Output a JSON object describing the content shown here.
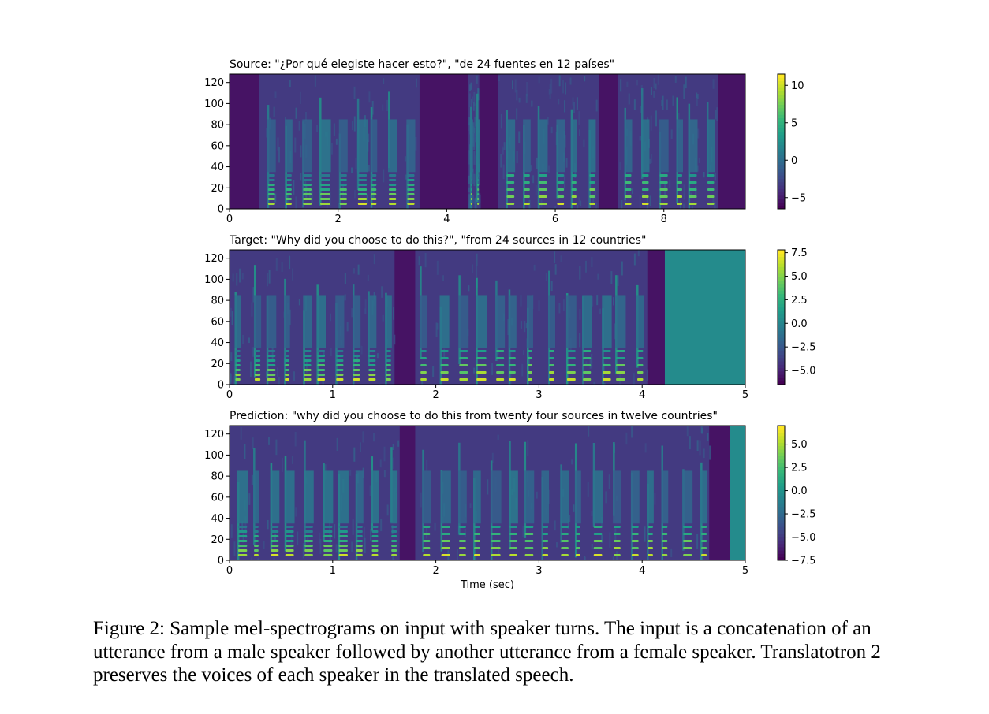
{
  "figure": {
    "xlabel": "Time (sec)",
    "panels": [
      {
        "title": "Source: \"¿Por qué elegiste hacer esto?\", \"de 24 fuentes en 12 países\"",
        "xlim": [
          0,
          9.5
        ],
        "xticks": [
          0,
          2,
          4,
          6,
          8
        ],
        "ylim": [
          0,
          128
        ],
        "yticks": [
          0,
          20,
          40,
          60,
          80,
          100,
          120
        ],
        "colorbar": {
          "range": [
            -6.5,
            11.5
          ],
          "ticks": [
            10,
            5,
            0,
            -5
          ],
          "tick_labels": [
            "10",
            "5",
            "0",
            "−5"
          ]
        },
        "segments": [
          {
            "t0": 0.55,
            "t1": 3.5,
            "speaker": "male"
          },
          {
            "t0": 4.4,
            "t1": 4.6,
            "speaker": "male"
          },
          {
            "t0": 4.95,
            "t1": 6.8,
            "speaker": "female"
          },
          {
            "t0": 7.15,
            "t1": 9.0,
            "speaker": "female"
          }
        ],
        "padding_from": null
      },
      {
        "title": "Target: \"Why did you choose to do this?\", \"from 24 sources in 12 countries\"",
        "xlim": [
          0,
          5
        ],
        "xticks": [
          0,
          1,
          2,
          3,
          4,
          5
        ],
        "ylim": [
          0,
          128
        ],
        "yticks": [
          0,
          20,
          40,
          60,
          80,
          100,
          120
        ],
        "colorbar": {
          "range": [
            -6.5,
            7.8
          ],
          "ticks": [
            7.5,
            5.0,
            2.5,
            0.0,
            -2.5,
            -5.0
          ],
          "tick_labels": [
            "7.5",
            "5.0",
            "2.5",
            "0.0",
            "−2.5",
            "−5.0"
          ]
        },
        "segments": [
          {
            "t0": 0.0,
            "t1": 1.6,
            "speaker": "male"
          },
          {
            "t0": 1.8,
            "t1": 4.05,
            "speaker": "female"
          }
        ],
        "padding_from": 4.22
      },
      {
        "title": "Prediction: \"why did you choose to do this from twenty four sources in twelve countries\"",
        "xlim": [
          0,
          5
        ],
        "xticks": [
          0,
          1,
          2,
          3,
          4,
          5
        ],
        "ylim": [
          0,
          128
        ],
        "yticks": [
          0,
          20,
          40,
          60,
          80,
          100,
          120
        ],
        "colorbar": {
          "range": [
            -7.5,
            7.0
          ],
          "ticks": [
            5.0,
            2.5,
            0.0,
            -2.5,
            -5.0,
            -7.5
          ],
          "tick_labels": [
            "5.0",
            "2.5",
            "0.0",
            "−2.5",
            "−5.0",
            "−7.5"
          ]
        },
        "segments": [
          {
            "t0": 0.0,
            "t1": 1.65,
            "speaker": "male"
          },
          {
            "t0": 1.8,
            "t1": 4.65,
            "speaker": "female"
          }
        ],
        "padding_from": 4.85
      }
    ]
  },
  "caption": "Figure 2: Sample mel-spectrograms on input with speaker turns. The input is a concatenation of an utterance from a male speaker followed by another utterance from a female speaker. Translatotron 2 preserves the voices of each speaker in the translated speech."
}
